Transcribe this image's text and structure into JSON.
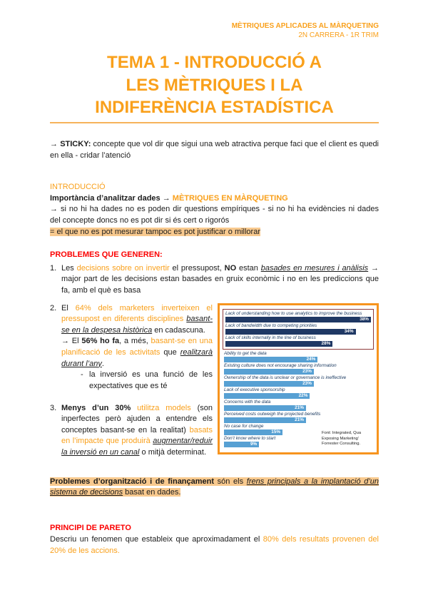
{
  "theme": {
    "orange": "#F9A01B",
    "red": "#FB0000",
    "highlight_bg": "#F8C98E",
    "rule": "#F6B35B",
    "navy_bar": "#1F3864",
    "blue_bar": "#57A0D5",
    "chart_border": "#F7941E",
    "red_box": "#8E3B3B"
  },
  "header": {
    "course": "MÈTRIQUES APLICADES AL MÀRQUETING",
    "subtitle": "2N CARRERA - 1R TRIM"
  },
  "title": {
    "line1": "TEMA 1 - INTRODUCCIÓ A",
    "line2": "LES MÈTRIQUES I LA",
    "line3": "INDIFERÈNCIA ESTADÍSTICA"
  },
  "sticky": {
    "runs": [
      {
        "t": "→ "
      },
      {
        "t": "STICKY:",
        "s": "b"
      },
      {
        "t": " concepte que vol dir que sigui una web atractiva perque faci que el client es quedi en ella - cridar l’atenció"
      }
    ]
  },
  "intro": {
    "heading": "INTRODUCCIÓ",
    "line": {
      "runs": [
        {
          "t": "Importància d’analitzar dades",
          "s": "b"
        },
        {
          "t": " → "
        },
        {
          "t": "MÈTRIQUES EN MÀRQUETING",
          "s": "ob"
        }
      ]
    },
    "para": "→ si no hi ha dades no es poden dir questions empíriques - si no hi ha evidències ni dades del concepte doncs no es pot dir si és cert o rigorós",
    "highlight": "= el que no es pot mesurar tampoc es pot justificar o millorar"
  },
  "problemes": {
    "heading": "PROBLEMES QUE GENEREN:",
    "item1": {
      "num": "1.",
      "runs": [
        {
          "t": "Les "
        },
        {
          "t": "decisions sobre on invertir",
          "s": "o"
        },
        {
          "t": " el pressupost, "
        },
        {
          "t": "NO",
          "s": "b"
        },
        {
          "t": " estan "
        },
        {
          "t": "basades en mesures i anàlisis",
          "s": "iu"
        },
        {
          "t": " → major part de les decisions estan basades en gruix econòmic i no en les prediccions que fa, amb el què es basa"
        }
      ]
    },
    "item2": {
      "num": "2.",
      "runs": [
        {
          "t": "El "
        },
        {
          "t": "64% dels marketers inverteixen el pressupost en diferents disciplines ",
          "s": "o"
        },
        {
          "t": "basant-se en la despesa històrica",
          "s": "iu"
        },
        {
          "t": " en cadascuna."
        }
      ],
      "runs2": [
        {
          "t": "→ El "
        },
        {
          "t": "56% ho fa",
          "s": "b"
        },
        {
          "t": ", a més, "
        },
        {
          "t": "basant-se en una planificació de les activitats",
          "s": "o"
        },
        {
          "t": " que "
        },
        {
          "t": "realitzarà durant l’any",
          "s": "iu"
        },
        {
          "t": "."
        }
      ],
      "sub_dash": "-",
      "sub": "la inversió es una funció de les expectatives que es té"
    },
    "item3": {
      "num": "3.",
      "runs": [
        {
          "t": "Menys d’un 30%",
          "s": "b"
        },
        {
          "t": " "
        },
        {
          "t": "utilitza models",
          "s": "o"
        },
        {
          "t": " (son inperfectes però ajuden a entendre els conceptes basant-se en la realitat) "
        },
        {
          "t": "basats en l’impacte que produirà",
          "s": "o"
        },
        {
          "t": " "
        },
        {
          "t": "augmentar/reduir la inversió en un canal",
          "s": "iu"
        },
        {
          "t": " o mitjà determinat."
        }
      ]
    }
  },
  "finance": {
    "runs": [
      {
        "t": "Problemes d’organització i de finançament",
        "s": "b"
      },
      {
        "t": " són els "
      },
      {
        "t": "frens principals a la implantació d’un sistema de decisions",
        "s": "iu"
      },
      {
        "t": " basat en dades."
      }
    ]
  },
  "pareto": {
    "heading": "PRINCIPI DE PARETO",
    "runs": [
      {
        "t": "Descriu un fenomen que estableix que aproximadament el "
      },
      {
        "t": "80% dels resultats provenen del 20% de les accions.",
        "s": "o"
      }
    ]
  },
  "chart_data": {
    "type": "bar",
    "orientation": "horizontal",
    "categories": [
      "Lack of understanding how to use analytics to improve the business",
      "Lack of bandwidth due to competing priorities",
      "Lack of skills internally in the line of business",
      "Ability to get the data",
      "Existing culture does not encourage sharing information",
      "Ownership of the data is unclear or governance is ineffective",
      "Lack of executive sponsorship",
      "Concerns with the data",
      "Perceived costs outweigh the projected benefits",
      "No case for change",
      "Don’t know where to start"
    ],
    "values": [
      38,
      34,
      28,
      24,
      23,
      23,
      22,
      21,
      21,
      15,
      9
    ],
    "unit": "%",
    "xlim": [
      0,
      40
    ],
    "highlight_top": 3,
    "legend": "none",
    "grid": false,
    "source_lines": [
      "Font: Integrated, Qua",
      "Exposing Marketing’",
      "Forrester Consulting."
    ]
  }
}
